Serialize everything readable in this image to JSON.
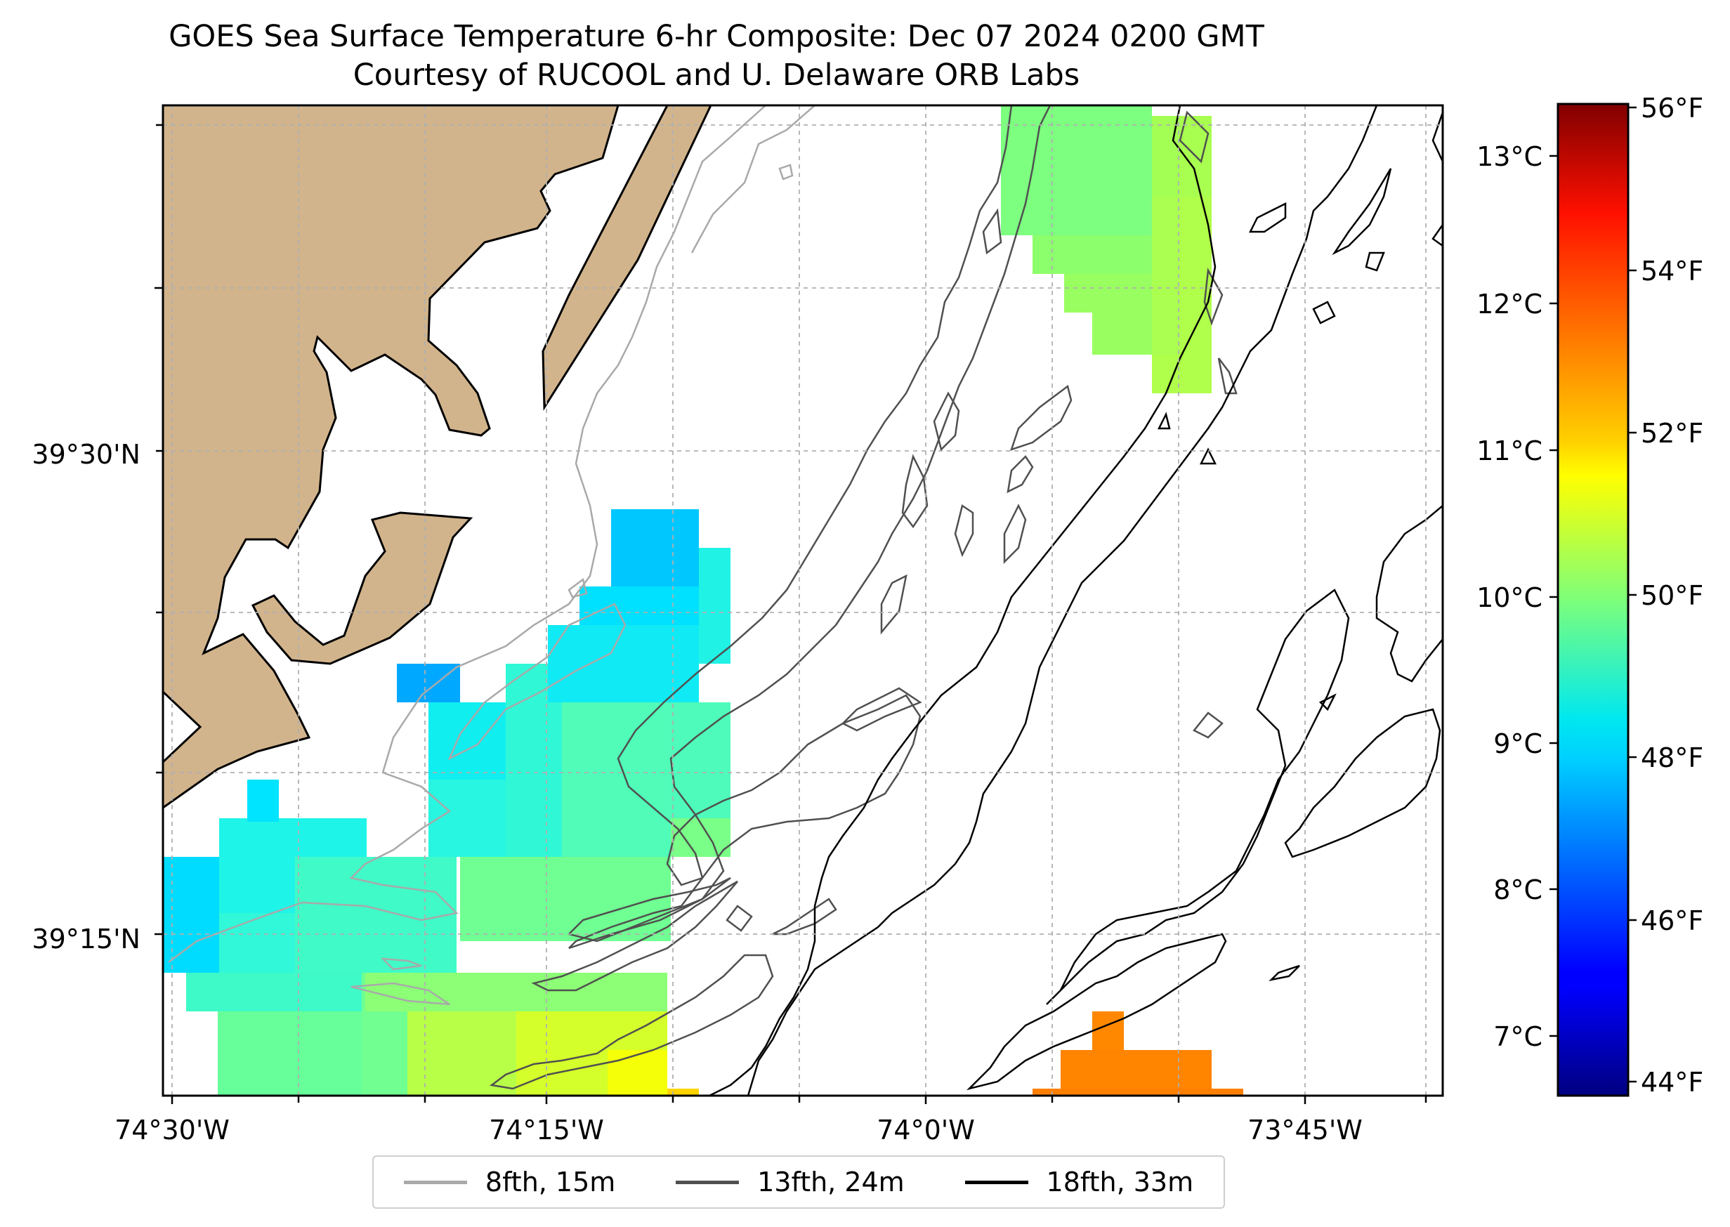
{
  "title_line1": "GOES Sea Surface Temperature 6-hr Composite: Dec 07 2024 0200 GMT",
  "title_line2": "Courtesy of RUCOOL and U. Delaware ORB Labs",
  "map": {
    "lon_ticks": [
      "74°30'W",
      "74°15'W",
      "74°0'W",
      "73°45'W"
    ],
    "lat_ticks": [
      "39°30'N",
      "39°15'N"
    ],
    "colors": {
      "land": "#d2b48c",
      "contour_8fth": "#a9a9a9",
      "contour_13fth": "#505050",
      "contour_18fth": "#000000"
    }
  },
  "colorbar": {
    "celsius_ticks": [
      "13°C",
      "12°C",
      "11°C",
      "10°C",
      "9°C",
      "8°C",
      "7°C"
    ],
    "fahrenheit_ticks": [
      "56°F",
      "54°F",
      "52°F",
      "50°F",
      "48°F",
      "46°F",
      "44°F"
    ],
    "colormap": "jet"
  },
  "legend": {
    "items": [
      {
        "label": "8fth, 15m",
        "color": "#a9a9a9"
      },
      {
        "label": "13fth, 24m",
        "color": "#505050"
      },
      {
        "label": "18fth, 33m",
        "color": "#000000"
      }
    ]
  }
}
